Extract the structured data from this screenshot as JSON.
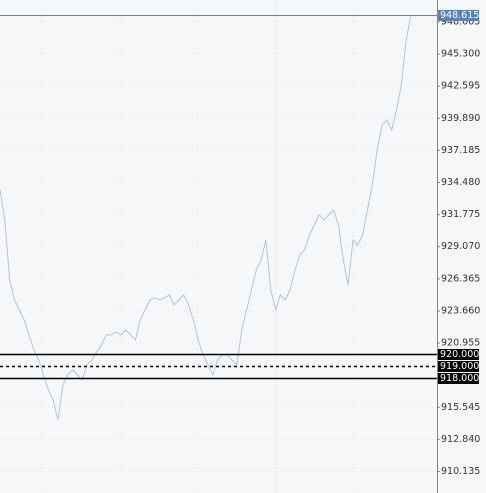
{
  "chart_data": {
    "type": "line",
    "color": "#b0c4de",
    "grid": true,
    "values": [
      933.85,
      931.32,
      926.27,
      924.59,
      923.74,
      922.9,
      921.64,
      920.37,
      919.53,
      918.27,
      917.0,
      916.16,
      914.48,
      917.42,
      918.27,
      918.69,
      918.27,
      917.85,
      919.11,
      919.53,
      920.2,
      920.79,
      921.64,
      921.64,
      921.89,
      921.64,
      922.06,
      921.64,
      921.21,
      922.9,
      923.74,
      924.59,
      924.75,
      924.59,
      924.75,
      925.01,
      924.16,
      924.59,
      925.01,
      924.16,
      922.9,
      921.21,
      919.95,
      919.11,
      918.27,
      919.53,
      919.95,
      919.95,
      919.53,
      919.11,
      922.06,
      923.74,
      925.43,
      927.11,
      927.95,
      929.64,
      925.43,
      923.74,
      925.01,
      924.59,
      925.43,
      927.11,
      928.38,
      928.8,
      930.06,
      930.91,
      931.75,
      931.32,
      931.75,
      932.17,
      930.91,
      927.95,
      925.85,
      929.64,
      929.22,
      930.06,
      932.17,
      934.27,
      937.22,
      939.33,
      939.75,
      938.91,
      940.59,
      942.7,
      946.49,
      948.615
    ],
    "ylim": [
      908.32,
      949.86
    ],
    "yticks": [
      {
        "value": 948.005,
        "label": "948.005"
      },
      {
        "value": 945.3,
        "label": "945.300"
      },
      {
        "value": 942.595,
        "label": "942.595"
      },
      {
        "value": 939.89,
        "label": "939.890"
      },
      {
        "value": 937.185,
        "label": "937.185"
      },
      {
        "value": 934.48,
        "label": "934.480"
      },
      {
        "value": 931.775,
        "label": "931.775"
      },
      {
        "value": 929.07,
        "label": "929.070"
      },
      {
        "value": 926.365,
        "label": "926.365"
      },
      {
        "value": 923.66,
        "label": "923.660"
      },
      {
        "value": 920.955,
        "label": "920.955"
      },
      {
        "value": 915.545,
        "label": "915.545"
      },
      {
        "value": 912.84,
        "label": "912.840"
      },
      {
        "value": 910.135,
        "label": "910.135"
      }
    ],
    "levels": [
      {
        "value": 920,
        "label": "920.000",
        "style": "solid"
      },
      {
        "value": 919,
        "label": "919.000",
        "style": "dashed"
      },
      {
        "value": 918,
        "label": "918.000",
        "style": "solid"
      }
    ],
    "last_price": {
      "value": 948.615,
      "label": "948.615",
      "color": "#5a82b4"
    }
  }
}
